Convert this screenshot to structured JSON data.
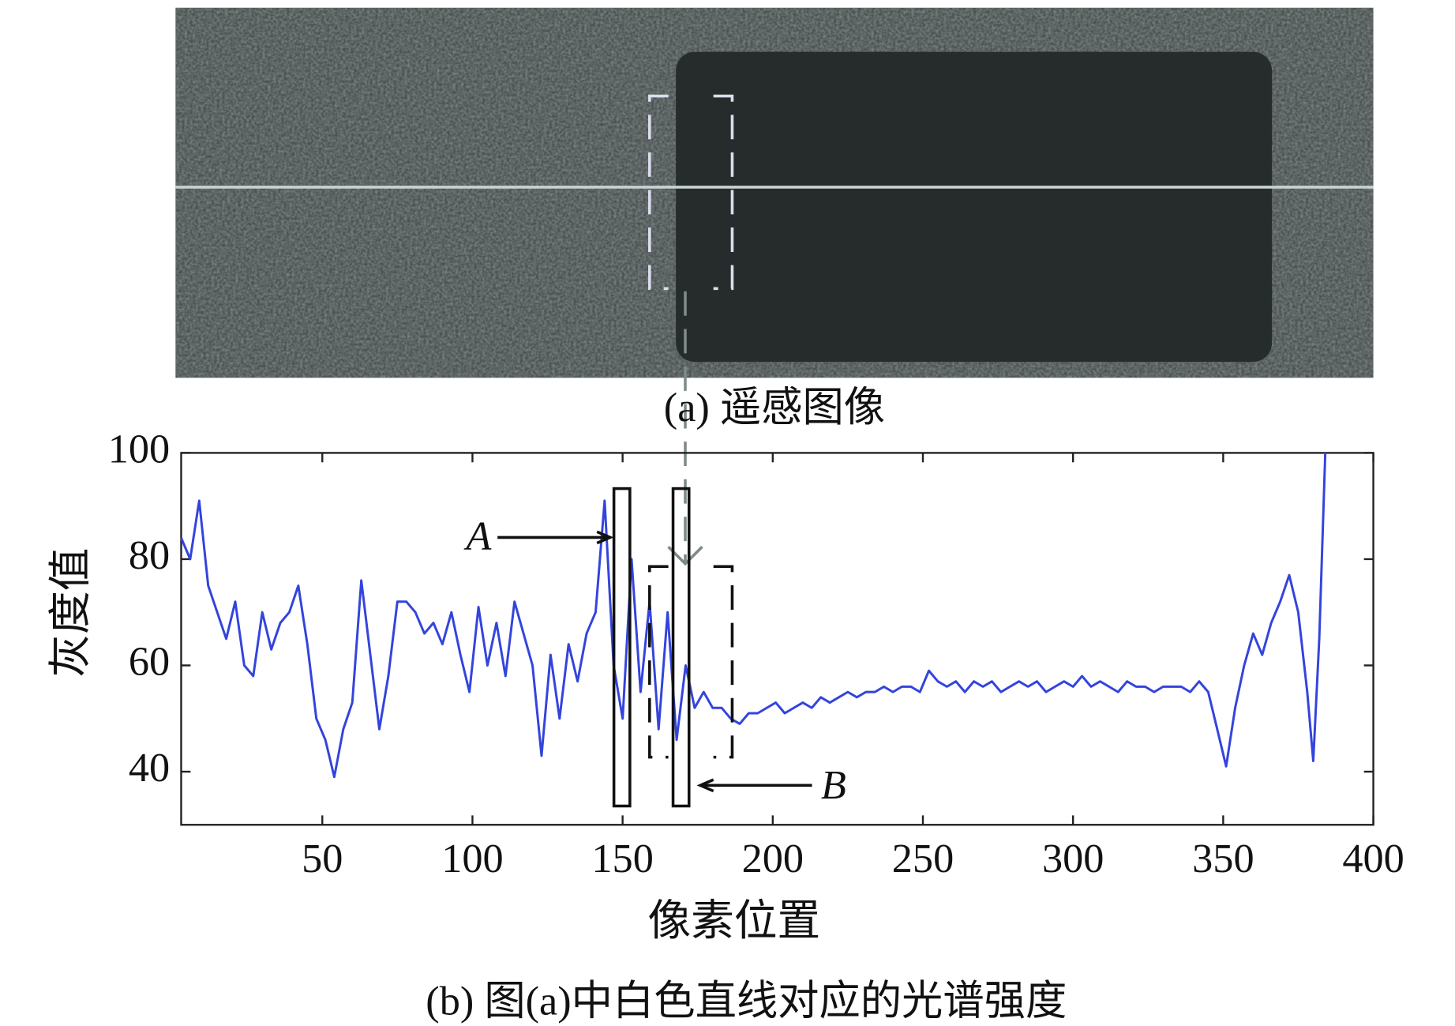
{
  "chart_data": {
    "type": "line",
    "image_caption": "(a) 遥感图像",
    "caption": "(b) 图(a)中白色直线对应的光谱强度",
    "xlabel": "像素位置",
    "ylabel": "灰度值",
    "annotations": [
      "A",
      "B"
    ],
    "x": [
      3,
      6,
      9,
      12,
      15,
      18,
      21,
      24,
      27,
      30,
      33,
      36,
      39,
      42,
      45,
      48,
      51,
      54,
      57,
      60,
      63,
      66,
      69,
      72,
      75,
      78,
      81,
      84,
      87,
      90,
      93,
      96,
      99,
      102,
      105,
      108,
      111,
      114,
      117,
      120,
      123,
      126,
      129,
      132,
      135,
      138,
      141,
      144,
      147,
      150,
      153,
      156,
      159,
      162,
      165,
      168,
      171,
      174,
      177,
      180,
      183,
      186,
      189,
      192,
      195,
      198,
      201,
      204,
      207,
      210,
      213,
      216,
      219,
      222,
      225,
      228,
      231,
      234,
      237,
      240,
      243,
      246,
      249,
      252,
      255,
      258,
      261,
      264,
      267,
      270,
      273,
      276,
      279,
      282,
      285,
      288,
      291,
      294,
      297,
      300,
      303,
      306,
      309,
      312,
      315,
      318,
      321,
      324,
      327,
      330,
      333,
      336,
      339,
      342,
      345,
      348,
      351,
      354,
      357,
      360,
      363,
      366,
      369,
      372,
      375,
      378,
      380,
      382,
      384
    ],
    "series": [
      {
        "color": "#3344dd",
        "values": [
          84,
          80,
          91,
          75,
          70,
          65,
          72,
          60,
          58,
          70,
          63,
          68,
          70,
          75,
          64,
          50,
          46,
          39,
          48,
          53,
          76,
          62,
          48,
          58,
          72,
          72,
          70,
          66,
          68,
          64,
          70,
          62,
          55,
          71,
          60,
          68,
          58,
          72,
          66,
          60,
          43,
          62,
          50,
          64,
          57,
          66,
          70,
          91,
          60,
          50,
          80,
          55,
          72,
          48,
          70,
          46,
          60,
          52,
          55,
          52,
          52,
          50,
          49,
          51,
          51,
          52,
          53,
          51,
          52,
          53,
          52,
          54,
          53,
          54,
          55,
          54,
          55,
          55,
          56,
          55,
          56,
          56,
          55,
          59,
          57,
          56,
          57,
          55,
          57,
          56,
          57,
          55,
          56,
          57,
          56,
          57,
          55,
          56,
          57,
          56,
          58,
          56,
          57,
          56,
          55,
          57,
          56,
          56,
          55,
          56,
          56,
          56,
          55,
          57,
          55,
          48,
          41,
          52,
          60,
          66,
          62,
          68,
          72,
          77,
          70,
          55,
          42,
          65,
          100
        ]
      }
    ],
    "xlim": [
      3,
      400
    ],
    "ylim": [
      30,
      100
    ],
    "xticks": [
      50,
      100,
      150,
      200,
      250,
      300,
      350,
      400
    ],
    "yticks": [
      40,
      60,
      80,
      100
    ]
  }
}
